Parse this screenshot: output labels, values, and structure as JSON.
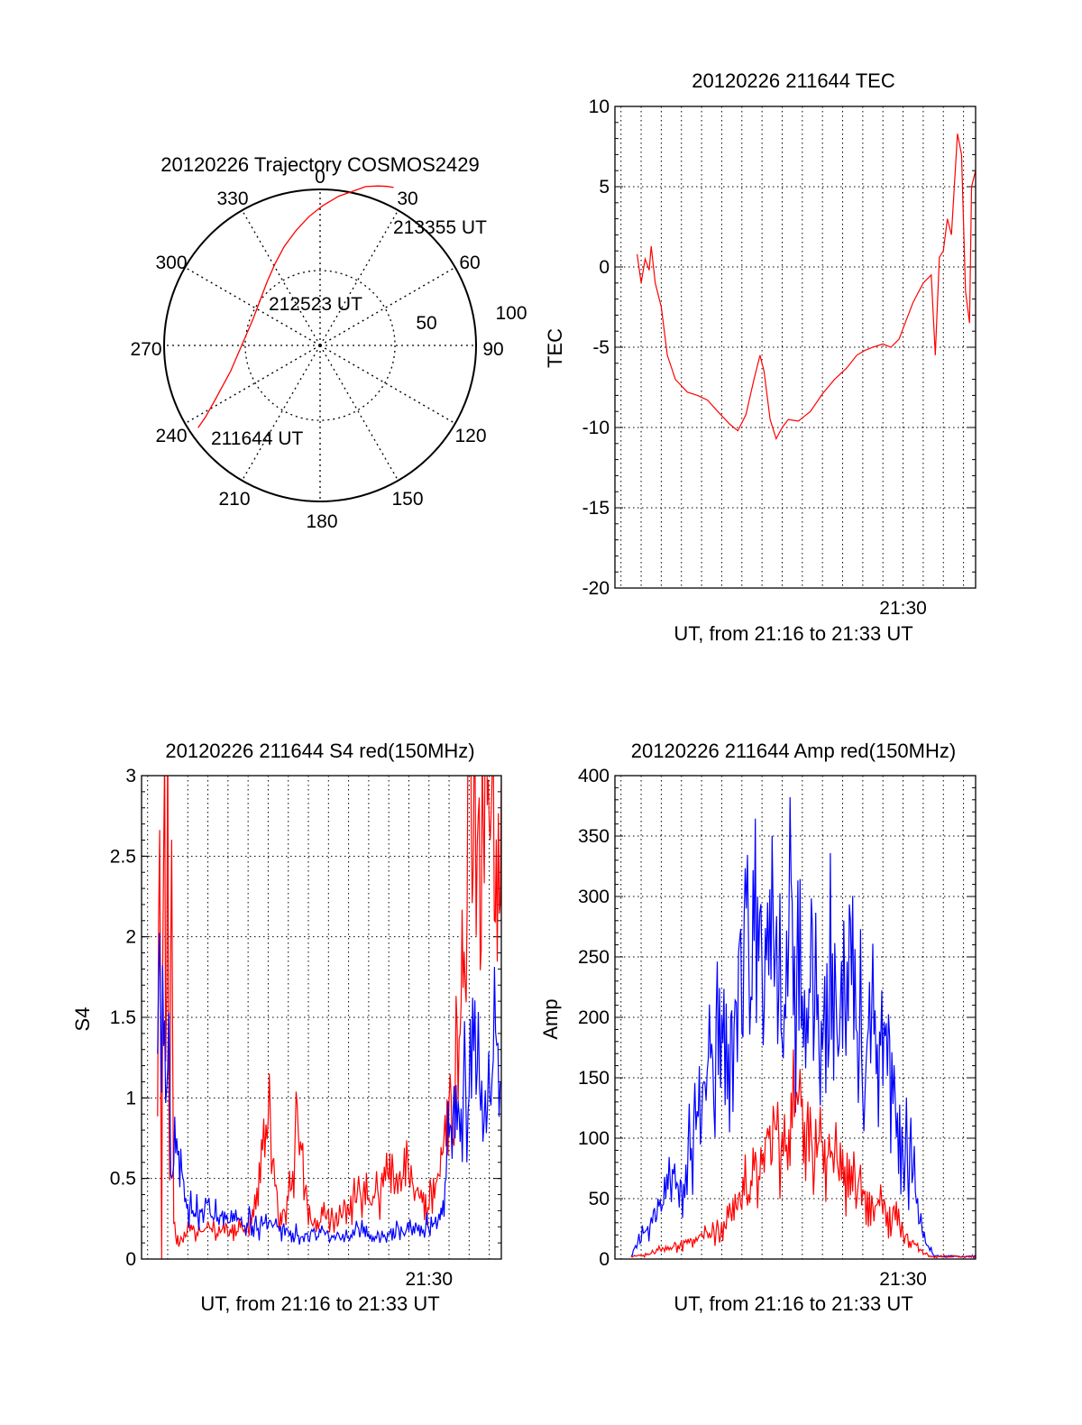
{
  "chart_data": [
    {
      "type": "polar",
      "title": "20120226 Trajectory COSMOS2429",
      "azimuth_ticks": [
        "0",
        "30",
        "60",
        "90",
        "120",
        "150",
        "180",
        "210",
        "240",
        "270",
        "300",
        "330"
      ],
      "zenith_ring_labels": [
        "50",
        "100"
      ],
      "max_zenith": 100,
      "series": [
        {
          "color": "#ff0000",
          "points": [
            {
              "az": 236,
              "zen": 98
            },
            {
              "az": 238,
              "zen": 90
            },
            {
              "az": 242,
              "zen": 80
            },
            {
              "az": 247,
              "zen": 71
            },
            {
              "az": 254,
              "zen": 62
            },
            {
              "az": 264,
              "zen": 55
            },
            {
              "az": 277,
              "zen": 50
            },
            {
              "az": 292,
              "zen": 48
            },
            {
              "az": 307,
              "zen": 50
            },
            {
              "az": 320,
              "zen": 55
            },
            {
              "az": 331,
              "zen": 62
            },
            {
              "az": 340,
              "zen": 70
            },
            {
              "az": 348,
              "zen": 78
            },
            {
              "az": 355,
              "zen": 86
            },
            {
              "az": 1,
              "zen": 93
            },
            {
              "az": 7,
              "zen": 100
            },
            {
              "az": 12,
              "zen": 105
            },
            {
              "az": 16,
              "zen": 110
            },
            {
              "az": 20,
              "zen": 113
            },
            {
              "az": 23,
              "zen": 115
            },
            {
              "az": 25,
              "zen": 116
            }
          ]
        }
      ],
      "annotations": [
        {
          "text": "213355 UT",
          "az": 25,
          "zen": 118
        },
        {
          "text": "212523 UT",
          "az": 350,
          "zen": 26
        },
        {
          "text": "211644 UT",
          "az": 207,
          "zen": 80
        }
      ]
    },
    {
      "type": "line",
      "title": "20120226 211644 TEC",
      "ylabel": "TEC",
      "xlabel": "UT, from 21:16 to 21:33 UT",
      "x_tick_label": "21:30",
      "x_tick_at": 30,
      "xlim": [
        15.7,
        33.6
      ],
      "ylim": [
        -20,
        10
      ],
      "yticks": [
        "-20",
        "-15",
        "-10",
        "-5",
        "0",
        "5",
        "10"
      ],
      "grid": true,
      "series": [
        {
          "color": "#ff0000",
          "x": [
            16.8,
            17.0,
            17.2,
            17.4,
            17.5,
            17.7,
            18.0,
            18.3,
            18.7,
            19.3,
            19.8,
            20.3,
            20.8,
            21.4,
            21.8,
            22.2,
            22.6,
            22.9,
            23.1,
            23.4,
            23.7,
            24.0,
            24.3,
            24.8,
            25.4,
            26.0,
            26.6,
            27.2,
            27.7,
            28.1,
            28.5,
            29.0,
            29.4,
            29.8,
            30.1,
            30.5,
            31.0,
            31.4,
            31.6,
            31.8,
            32.0,
            32.2,
            32.4,
            32.7,
            32.9,
            33.1,
            33.3,
            33.4,
            33.6
          ],
          "y": [
            0.8,
            -1.0,
            0.5,
            -0.2,
            1.3,
            -1.0,
            -2.5,
            -5.5,
            -7.0,
            -7.8,
            -8.0,
            -8.3,
            -9.0,
            -9.8,
            -10.2,
            -9.2,
            -7.0,
            -5.5,
            -6.5,
            -9.5,
            -10.7,
            -10.0,
            -9.5,
            -9.6,
            -9.0,
            -7.9,
            -7.0,
            -6.3,
            -5.5,
            -5.2,
            -5.0,
            -4.8,
            -5.0,
            -4.5,
            -3.5,
            -2.2,
            -1.0,
            -0.5,
            -5.5,
            0.6,
            1.0,
            3.0,
            2.0,
            8.3,
            7.0,
            -1.5,
            -3.5,
            5.0,
            6.0
          ]
        }
      ]
    },
    {
      "type": "line",
      "title": "20120226 211644 S4 red(150MHz)",
      "ylabel": "S4",
      "xlabel": "UT, from 21:16 to 21:33 UT",
      "x_tick_label": "21:30",
      "x_tick_at": 30,
      "xlim": [
        15.7,
        33.6
      ],
      "ylim": [
        0,
        3
      ],
      "yticks": [
        "0",
        "0.5",
        "1",
        "1.5",
        "2",
        "2.5",
        "3"
      ],
      "grid": true,
      "series": [
        {
          "color": "#ff0000",
          "x": [
            16.5,
            16.6,
            16.7,
            16.8,
            16.9,
            17.0,
            17.1,
            17.2,
            17.3,
            17.4,
            17.6,
            18.0,
            18.5,
            19.0,
            19.5,
            20.0,
            20.5,
            21.0,
            21.5,
            22.0,
            22.5,
            23.0,
            23.5,
            24.0,
            24.5,
            25.0,
            25.5,
            26.0,
            26.5,
            27.0,
            27.5,
            28.0,
            28.5,
            29.0,
            29.5,
            30.0,
            30.5,
            30.8,
            31.0,
            31.2,
            31.5,
            31.8,
            32.0,
            32.2,
            32.4,
            32.6,
            32.8,
            33.0,
            33.2,
            33.4,
            33.6
          ],
          "y": [
            0.9,
            3.0,
            0.0,
            3.0,
            1.4,
            3.0,
            0.5,
            3.0,
            0.2,
            0.15,
            0.12,
            0.18,
            0.15,
            0.2,
            0.16,
            0.18,
            0.2,
            0.22,
            0.4,
            0.9,
            0.3,
            0.35,
            0.9,
            0.25,
            0.2,
            0.3,
            0.22,
            0.35,
            0.45,
            0.35,
            0.4,
            0.5,
            0.45,
            0.55,
            0.4,
            0.35,
            0.6,
            0.9,
            1.0,
            0.8,
            1.5,
            2.0,
            3.0,
            2.5,
            3.0,
            2.2,
            3.0,
            2.5,
            3.0,
            2.0,
            3.0
          ]
        },
        {
          "color": "#0000ff",
          "x": [
            16.5,
            16.6,
            16.7,
            16.8,
            16.9,
            17.0,
            17.2,
            17.4,
            17.6,
            17.8,
            18.0,
            18.3,
            18.6,
            19.0,
            19.5,
            20.0,
            20.5,
            21.0,
            21.5,
            22.0,
            22.5,
            23.0,
            23.5,
            24.0,
            24.5,
            25.0,
            25.5,
            26.0,
            26.5,
            27.0,
            27.5,
            28.0,
            28.5,
            29.0,
            29.5,
            30.0,
            30.5,
            30.8,
            31.0,
            31.3,
            31.6,
            32.0,
            32.4,
            32.8,
            33.2,
            33.6
          ],
          "y": [
            1.1,
            1.8,
            1.2,
            1.5,
            0.9,
            1.3,
            0.6,
            0.8,
            0.5,
            0.45,
            0.35,
            0.3,
            0.28,
            0.3,
            0.25,
            0.27,
            0.22,
            0.24,
            0.2,
            0.22,
            0.18,
            0.16,
            0.15,
            0.14,
            0.16,
            0.15,
            0.14,
            0.16,
            0.18,
            0.15,
            0.15,
            0.16,
            0.18,
            0.2,
            0.2,
            0.22,
            0.25,
            0.5,
            0.75,
            0.9,
            1.0,
            1.1,
            1.2,
            1.0,
            1.3,
            1.1
          ]
        }
      ]
    },
    {
      "type": "line",
      "title": "20120226 211644 Amp red(150MHz)",
      "ylabel": "Amp",
      "xlabel": "UT, from 21:16 to 21:33 UT",
      "x_tick_label": "21:30",
      "x_tick_at": 30,
      "xlim": [
        15.7,
        33.6
      ],
      "ylim": [
        0,
        400
      ],
      "yticks": [
        "0",
        "50",
        "100",
        "150",
        "200",
        "250",
        "300",
        "350",
        "400"
      ],
      "grid": true,
      "series": [
        {
          "color": "#0000ff",
          "x": [
            16.5,
            17.0,
            17.5,
            18.0,
            18.5,
            19.0,
            19.5,
            20.0,
            20.5,
            21.0,
            21.5,
            22.0,
            22.5,
            23.0,
            23.5,
            24.0,
            24.5,
            25.0,
            25.5,
            26.0,
            26.5,
            27.0,
            27.5,
            28.0,
            28.5,
            29.0,
            29.5,
            30.0,
            30.5,
            31.0,
            31.5,
            32.0,
            32.5,
            33.0,
            33.6
          ],
          "y": [
            3,
            18,
            32,
            48,
            60,
            72,
            95,
            115,
            150,
            185,
            205,
            230,
            250,
            240,
            295,
            220,
            265,
            200,
            255,
            180,
            235,
            200,
            270,
            160,
            220,
            180,
            150,
            100,
            70,
            20,
            3,
            2,
            2,
            2,
            3
          ]
        },
        {
          "color": "#ff0000",
          "x": [
            16.5,
            17.0,
            17.5,
            18.0,
            18.5,
            19.0,
            19.5,
            20.0,
            20.5,
            21.0,
            21.5,
            22.0,
            22.5,
            23.0,
            23.5,
            24.0,
            24.5,
            25.0,
            25.5,
            26.0,
            26.5,
            27.0,
            27.5,
            28.0,
            28.5,
            29.0,
            29.5,
            30.0,
            30.5,
            31.0,
            31.5,
            32.0,
            33.6
          ],
          "y": [
            2,
            3,
            5,
            8,
            10,
            12,
            15,
            18,
            20,
            25,
            35,
            50,
            70,
            85,
            95,
            100,
            120,
            110,
            90,
            100,
            80,
            75,
            70,
            55,
            45,
            40,
            35,
            25,
            15,
            5,
            2,
            2,
            2
          ]
        }
      ]
    }
  ]
}
